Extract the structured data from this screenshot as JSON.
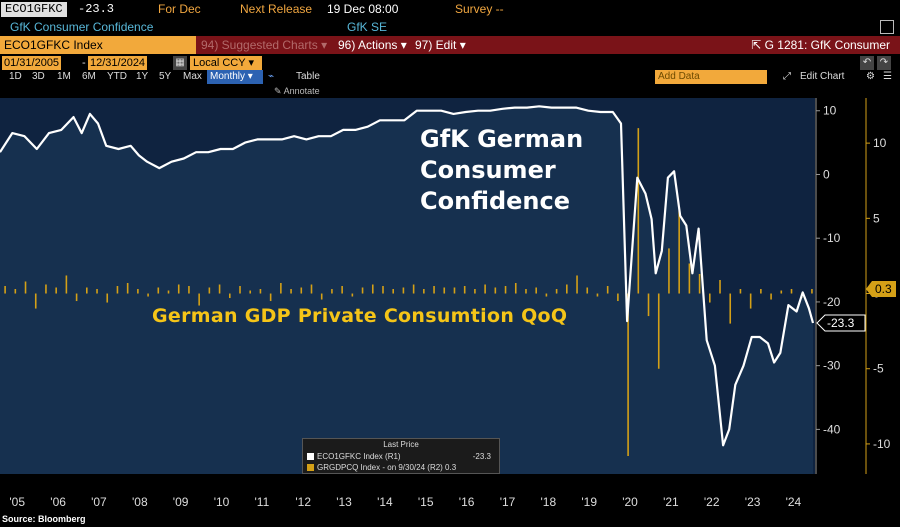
{
  "header": {
    "ticker": "ECO1GFKC",
    "last_value": "-23.3",
    "for_label": "For Dec",
    "next_release_label": "Next Release",
    "next_release_value": "19 Dec 08:00",
    "survey_label": "Survey --",
    "security_name": "GfK Consumer Confidence",
    "source_name": "GfK SE"
  },
  "toolbar": {
    "index_field": "ECO1GFKC Index",
    "suggested_charts": "94) Suggested Charts",
    "actions": "96) Actions",
    "edit": "97) Edit",
    "graph_label": "G 1281: GfK Consumer"
  },
  "range": {
    "start_date": "01/31/2005",
    "end_date": "12/31/2024",
    "separator": "-",
    "currency": "Local CCY",
    "periods": [
      "1D",
      "3D",
      "1M",
      "6M",
      "YTD",
      "1Y",
      "5Y",
      "Max"
    ],
    "frequency": "Monthly",
    "table_label": "Table",
    "add_data_placeholder": "Add Data",
    "edit_chart_label": "Edit Chart",
    "annotate_label": "Annotate"
  },
  "chart_data": {
    "type": "line",
    "titles": [
      "GfK German Consumer Confidence",
      "German GDP Private Consumtion QoQ"
    ],
    "x_labels": [
      "'05",
      "'06",
      "'07",
      "'08",
      "'09",
      "'10",
      "'11",
      "'12",
      "'13",
      "'14",
      "'15",
      "'16",
      "'17",
      "'18",
      "'19",
      "'20",
      "'21",
      "'22",
      "'23",
      "'24"
    ],
    "right_axis_1": {
      "ticks": [
        10,
        0,
        -10,
        -20,
        -30,
        -40
      ],
      "range": [
        -47,
        12
      ]
    },
    "right_axis_2": {
      "ticks": [
        10,
        5,
        0,
        -5,
        -10
      ],
      "range": [
        -12,
        13
      ]
    },
    "series": [
      {
        "name": "ECO1GFKC Index (R1)",
        "color": "#ffffff",
        "last_value": "-23.3",
        "points": [
          [
            2005.0,
            3.5
          ],
          [
            2005.3,
            6.5
          ],
          [
            2005.6,
            6.0
          ],
          [
            2005.9,
            4.0
          ],
          [
            2006.2,
            6.5
          ],
          [
            2006.5,
            7.0
          ],
          [
            2006.8,
            9.0
          ],
          [
            2007.0,
            6.5
          ],
          [
            2007.2,
            9.5
          ],
          [
            2007.4,
            8.0
          ],
          [
            2007.6,
            4.5
          ],
          [
            2007.9,
            4.0
          ],
          [
            2008.2,
            4.5
          ],
          [
            2008.4,
            3.0
          ],
          [
            2008.6,
            2.0
          ],
          [
            2008.9,
            1.0
          ],
          [
            2009.2,
            2.0
          ],
          [
            2009.5,
            2.5
          ],
          [
            2009.8,
            3.5
          ],
          [
            2010.1,
            3.5
          ],
          [
            2010.4,
            4.0
          ],
          [
            2010.7,
            4.0
          ],
          [
            2011.0,
            5.0
          ],
          [
            2011.3,
            5.5
          ],
          [
            2011.6,
            5.5
          ],
          [
            2011.9,
            5.5
          ],
          [
            2012.2,
            6.0
          ],
          [
            2012.5,
            5.5
          ],
          [
            2012.8,
            6.0
          ],
          [
            2013.1,
            6.0
          ],
          [
            2013.4,
            7.0
          ],
          [
            2013.7,
            7.0
          ],
          [
            2014.0,
            7.5
          ],
          [
            2014.3,
            8.5
          ],
          [
            2014.6,
            8.5
          ],
          [
            2014.9,
            8.5
          ],
          [
            2015.2,
            10.0
          ],
          [
            2015.5,
            10.0
          ],
          [
            2015.8,
            10.0
          ],
          [
            2016.1,
            9.5
          ],
          [
            2016.4,
            9.8
          ],
          [
            2016.7,
            10.0
          ],
          [
            2017.0,
            10.0
          ],
          [
            2017.3,
            10.3
          ],
          [
            2017.6,
            10.5
          ],
          [
            2017.9,
            10.5
          ],
          [
            2018.2,
            10.7
          ],
          [
            2018.5,
            10.5
          ],
          [
            2018.8,
            10.5
          ],
          [
            2019.1,
            10.5
          ],
          [
            2019.4,
            10.0
          ],
          [
            2019.7,
            9.8
          ],
          [
            2020.0,
            9.8
          ],
          [
            2020.2,
            8.0
          ],
          [
            2020.35,
            -23.0
          ],
          [
            2020.5,
            -9.5
          ],
          [
            2020.6,
            -0.5
          ],
          [
            2020.8,
            -3.0
          ],
          [
            2020.95,
            -7.0
          ],
          [
            2021.05,
            -15.5
          ],
          [
            2021.2,
            -12.0
          ],
          [
            2021.35,
            -0.5
          ],
          [
            2021.5,
            0.5
          ],
          [
            2021.65,
            -6.5
          ],
          [
            2021.8,
            -8.0
          ],
          [
            2021.95,
            -15.5
          ],
          [
            2022.1,
            -8.5
          ],
          [
            2022.3,
            -26.0
          ],
          [
            2022.5,
            -30.0
          ],
          [
            2022.7,
            -42.5
          ],
          [
            2022.85,
            -40.0
          ],
          [
            2023.0,
            -33.0
          ],
          [
            2023.2,
            -30.0
          ],
          [
            2023.4,
            -25.5
          ],
          [
            2023.6,
            -25.5
          ],
          [
            2023.8,
            -26.5
          ],
          [
            2023.95,
            -29.5
          ],
          [
            2024.1,
            -28.0
          ],
          [
            2024.3,
            -20.5
          ],
          [
            2024.5,
            -21.5
          ],
          [
            2024.65,
            -18.5
          ],
          [
            2024.8,
            -21.0
          ],
          [
            2024.9,
            -23.3
          ]
        ]
      },
      {
        "name": "GRGDPCQ Index - on 9/30/24 (R2)",
        "color": "#d4a017",
        "last_value": "0.3",
        "quarterly_values": [
          0.5,
          0.3,
          0.8,
          -1.0,
          0.6,
          0.4,
          1.2,
          -0.5,
          0.4,
          0.3,
          -0.6,
          0.5,
          0.7,
          0.3,
          -0.2,
          0.4,
          0.2,
          0.6,
          0.5,
          -0.8,
          0.4,
          0.6,
          -0.3,
          0.5,
          0.2,
          0.3,
          -0.5,
          0.7,
          0.3,
          0.4,
          0.6,
          -0.4,
          0.3,
          0.5,
          -0.2,
          0.4,
          0.6,
          0.5,
          0.3,
          0.4,
          0.6,
          0.3,
          0.5,
          0.4,
          0.4,
          0.5,
          0.3,
          0.6,
          0.4,
          0.5,
          0.7,
          0.3,
          0.4,
          -0.2,
          0.3,
          0.6,
          1.2,
          0.4,
          -0.2,
          0.5,
          -0.5,
          -10.8,
          11.0,
          -1.5,
          -5.0,
          3.0,
          5.5,
          2.0,
          1.3,
          -0.6,
          0.9,
          -2.0,
          0.3,
          -1.0,
          0.3,
          -0.4,
          0.2,
          0.3,
          -0.3,
          0.3
        ]
      }
    ]
  },
  "legend": {
    "header": "Last Price",
    "items": [
      {
        "label": "ECO1GFKC Index  (R1)",
        "value": "-23.3",
        "color": "#ffffff"
      },
      {
        "label": "GRGDPCQ Index - on 9/30/24  (R2) 0.3",
        "value": "",
        "color": "#d4a017"
      }
    ]
  },
  "footer": {
    "source": "Source: Bloomberg"
  }
}
